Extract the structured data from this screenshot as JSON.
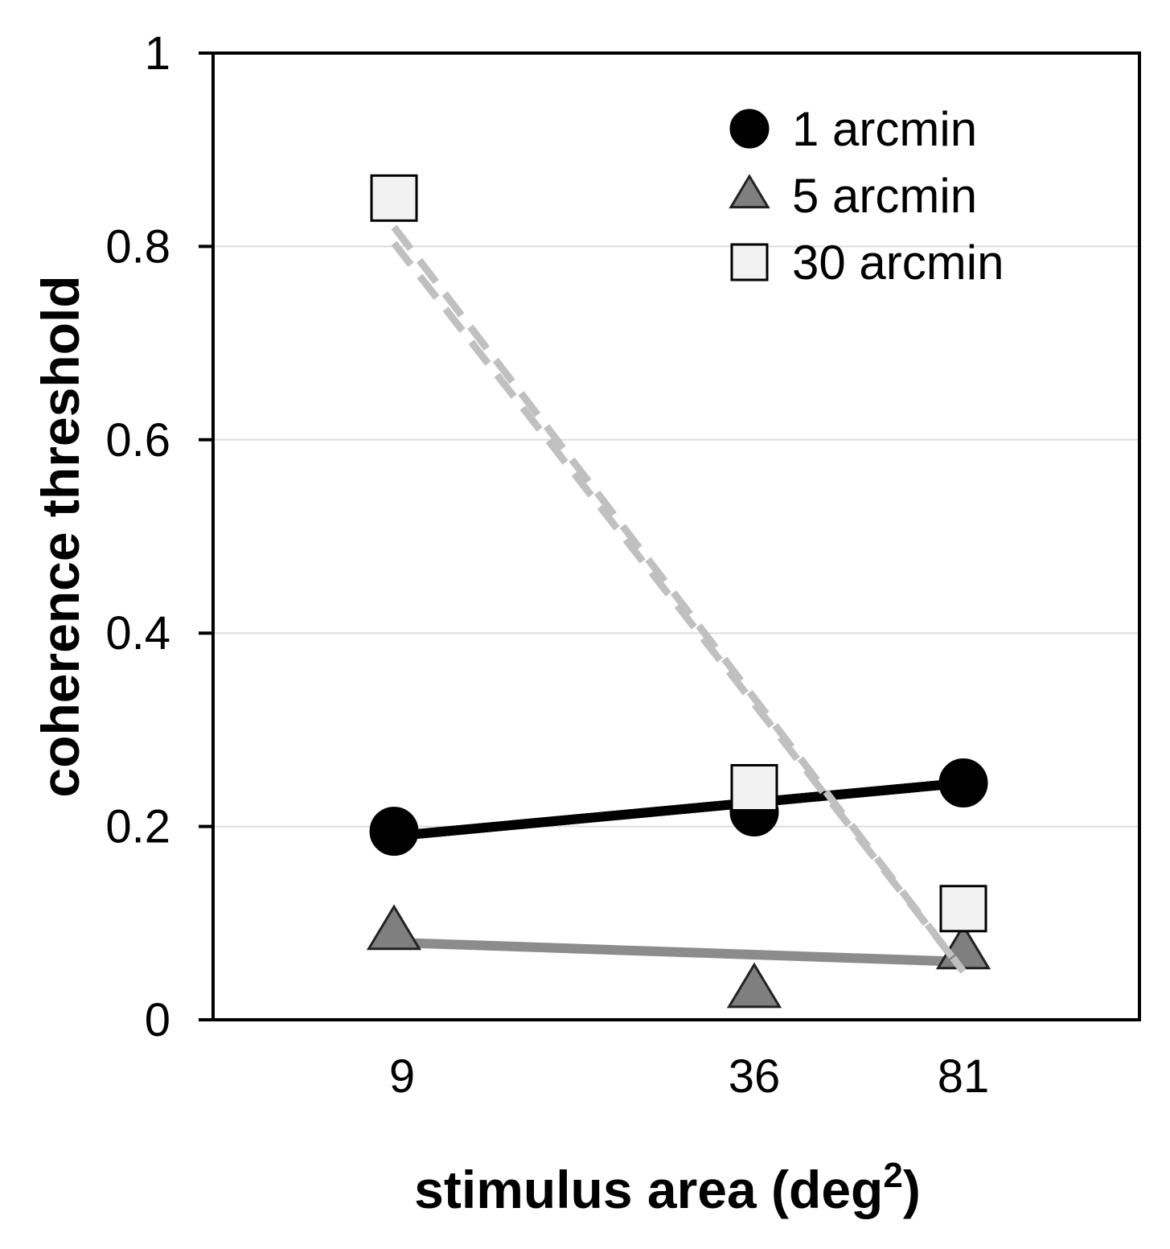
{
  "chart_data": {
    "type": "line",
    "title": "",
    "xlabel": "stimulus area (deg",
    "xlabel_superscript": "2",
    "xlabel_suffix": ")",
    "ylabel": "coherence threshold",
    "x": [
      9,
      36,
      81
    ],
    "x_tick_labels": [
      "9",
      "36",
      "81"
    ],
    "ylim": [
      0,
      1
    ],
    "y_ticks": [
      0,
      0.2,
      0.4,
      0.6,
      0.8,
      1
    ],
    "y_tick_labels": [
      "0",
      "0.2",
      "0.4",
      "0.6",
      "0.8",
      "1"
    ],
    "grid": true,
    "legend_position": "top-right",
    "series": [
      {
        "name": "1 arcmin",
        "marker": "circle",
        "values": [
          0.195,
          0.215,
          0.245
        ],
        "trend": [
          0.19,
          0.245
        ],
        "trend_style": "solid",
        "marker_color": "#000000",
        "line_color": "#000000"
      },
      {
        "name": "5 arcmin",
        "marker": "triangle",
        "values": [
          0.09,
          0.03,
          0.07
        ],
        "trend": [
          0.08,
          0.06
        ],
        "trend_style": "solid",
        "marker_color": "#7f7f7f",
        "line_color": "#8c8c8c"
      },
      {
        "name": "30 arcmin",
        "marker": "square",
        "values": [
          0.85,
          0.24,
          0.115
        ],
        "trend": [
          0.82,
          0.05
        ],
        "trend_style": "dashed",
        "marker_color": "#f2f2f2",
        "line_color": "#c0c0c0"
      }
    ]
  }
}
